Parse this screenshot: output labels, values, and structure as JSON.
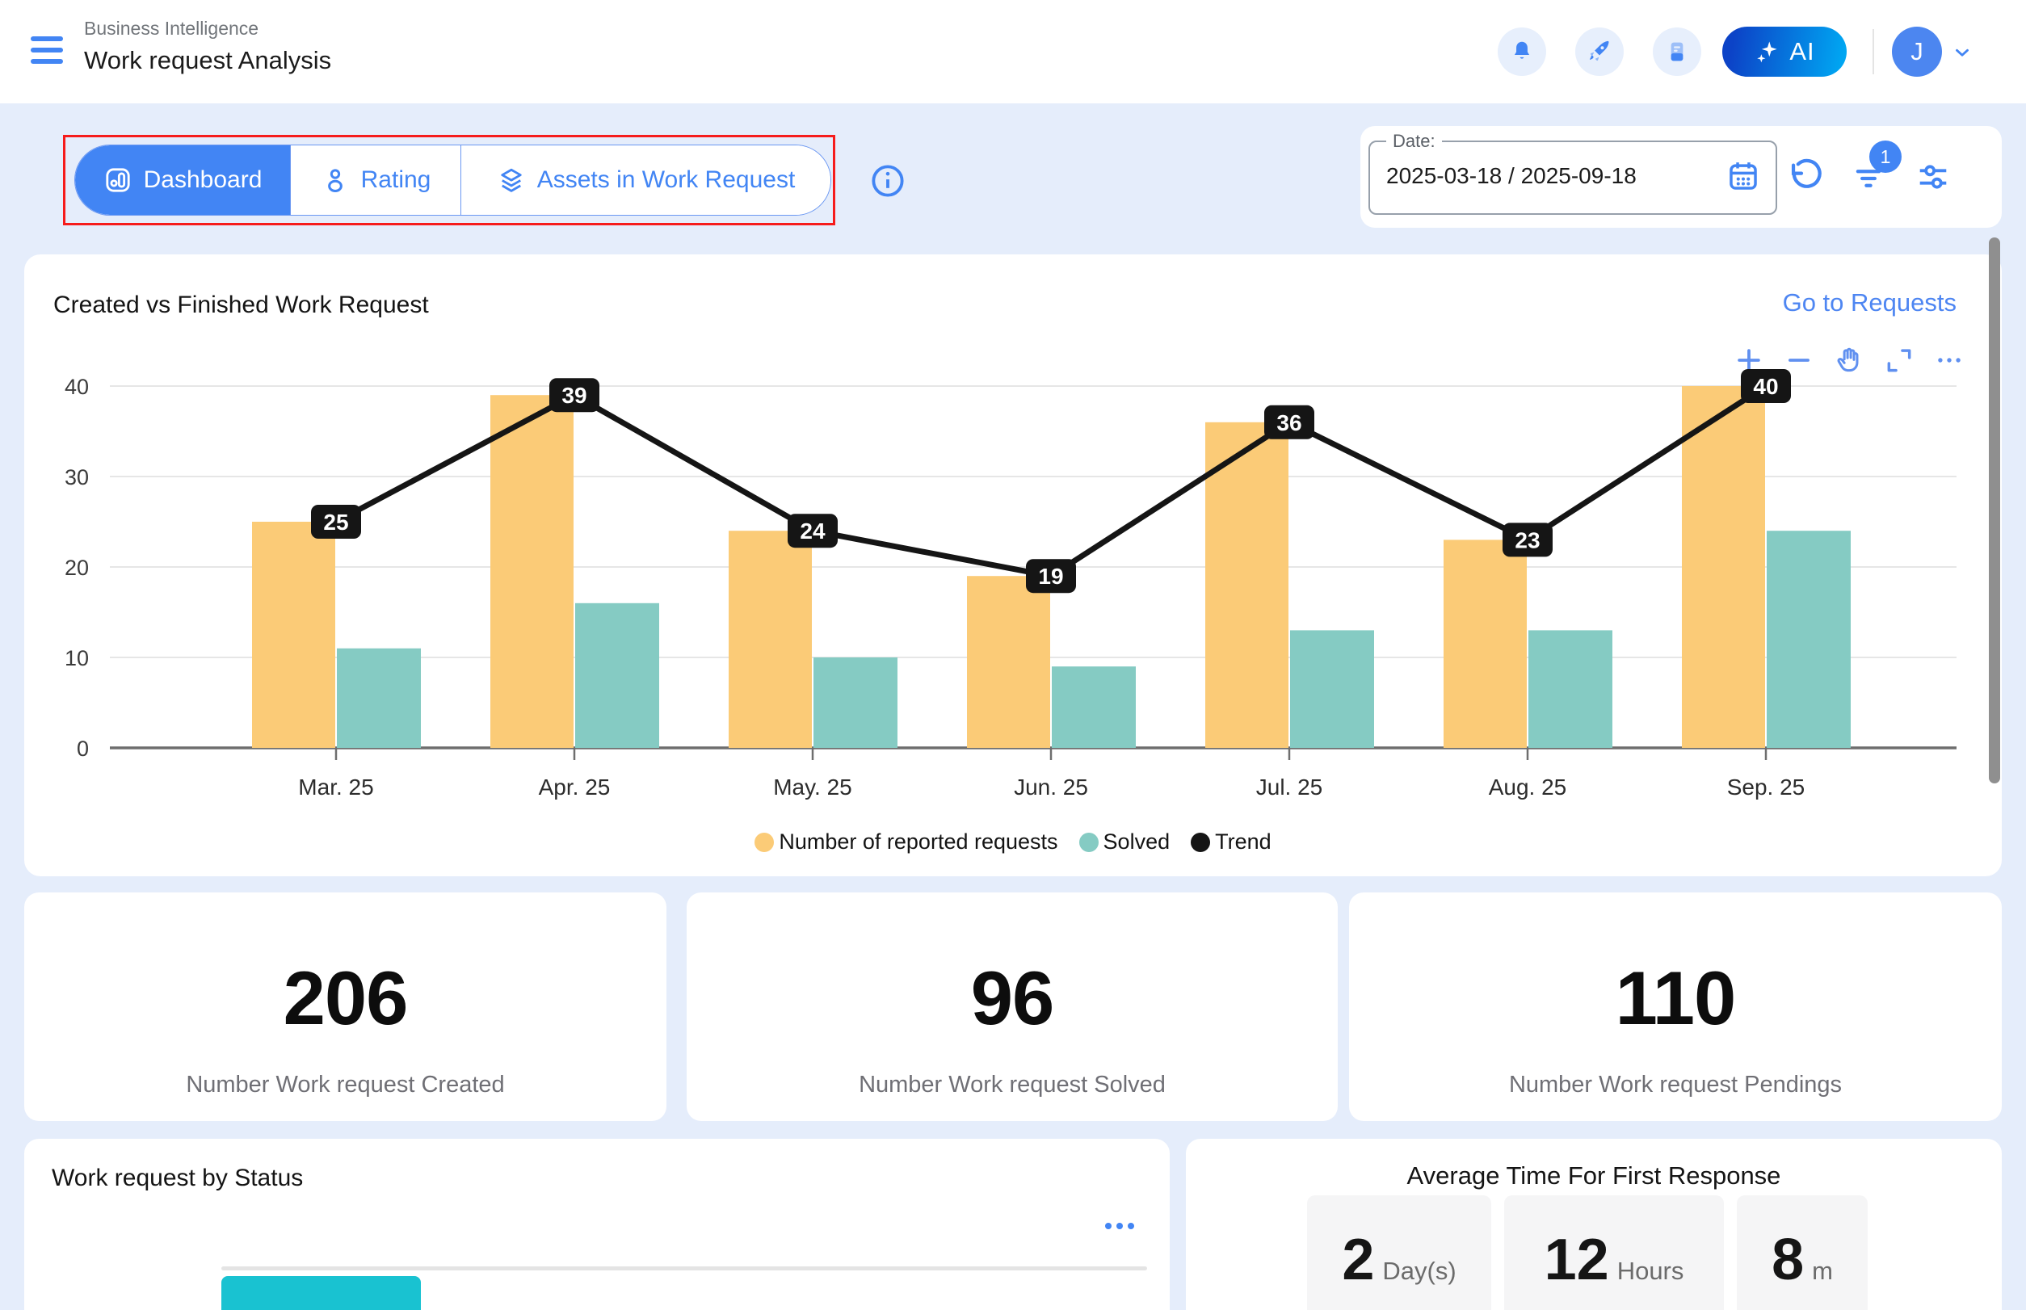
{
  "header": {
    "app_subtitle": "Business Intelligence",
    "page_title": "Work request Analysis",
    "icon_buttons": [
      "notification-bell-icon",
      "rocket-icon",
      "report-document-icon"
    ],
    "ai_button_label": "AI",
    "avatar_initial": "J"
  },
  "toolbar": {
    "tabs": [
      {
        "label": "Dashboard",
        "icon": "dashboard-icon",
        "active": true
      },
      {
        "label": "Rating",
        "icon": "person-icon",
        "active": false
      },
      {
        "label": "Assets in Work Request",
        "icon": "layers-icon",
        "active": false
      }
    ],
    "info_icon": "info-icon",
    "date_label": "Date:",
    "date_value": "2025-03-18 / 2025-09-18",
    "date_icon": "calendar-icon",
    "action_icons": [
      "refresh-icon",
      "filter-icon",
      "sliders-icon"
    ],
    "filter_badge_count": "1"
  },
  "chart_card": {
    "title": "Created vs Finished Work Request",
    "link_label": "Go to Requests",
    "tool_icons": [
      "zoom-in-icon",
      "zoom-out-icon",
      "pan-hand-icon",
      "fullscreen-icon",
      "more-icon"
    ]
  },
  "chart_data": {
    "type": "bar",
    "categories": [
      "Mar. 25",
      "Apr. 25",
      "May. 25",
      "Jun. 25",
      "Jul. 25",
      "Aug. 25",
      "Sep. 25"
    ],
    "series": [
      {
        "name": "Number of reported requests",
        "render": "bar",
        "color": "#FBCB77",
        "values": [
          25,
          39,
          24,
          19,
          36,
          23,
          40
        ]
      },
      {
        "name": "Solved",
        "render": "bar",
        "color": "#85CBC3",
        "values": [
          11,
          16,
          10,
          9,
          13,
          13,
          24
        ]
      },
      {
        "name": "Trend",
        "render": "line",
        "color": "#151515",
        "values": [
          25,
          39,
          24,
          19,
          36,
          23,
          40
        ]
      }
    ],
    "point_labels": [
      25,
      39,
      24,
      19,
      36,
      23,
      40
    ],
    "title": "Created vs Finished Work Request",
    "xlabel": "",
    "ylabel": "",
    "ylim": [
      0,
      40
    ],
    "yticks": [
      0,
      10,
      20,
      30,
      40
    ],
    "grid": true,
    "legend_position": "bottom"
  },
  "stats": [
    {
      "value": "206",
      "label": "Number Work request Created"
    },
    {
      "value": "96",
      "label": "Number Work request Solved"
    },
    {
      "value": "110",
      "label": "Number Work request Pendings"
    }
  ],
  "status_card": {
    "title": "Work request by Status",
    "more_icon": "more-dots-icon",
    "first_bar_color": "#19C2D1"
  },
  "response_card": {
    "title": "Average Time For First Response",
    "items": [
      {
        "value": "2",
        "unit": "Day(s)"
      },
      {
        "value": "12",
        "unit": "Hours"
      },
      {
        "value": "8",
        "unit": "m"
      }
    ]
  },
  "colors": {
    "accent_blue": "#4285F4",
    "page_background": "#E5EDFB",
    "reported_bar": "#FBCB77",
    "solved_bar": "#85CBC3",
    "trend_line": "#151515",
    "status_bar_cyan": "#19C2D1",
    "annotation_red": "#F61B1B",
    "ai_gradient_start": "#0C43C7",
    "ai_gradient_end": "#00A6F2"
  }
}
